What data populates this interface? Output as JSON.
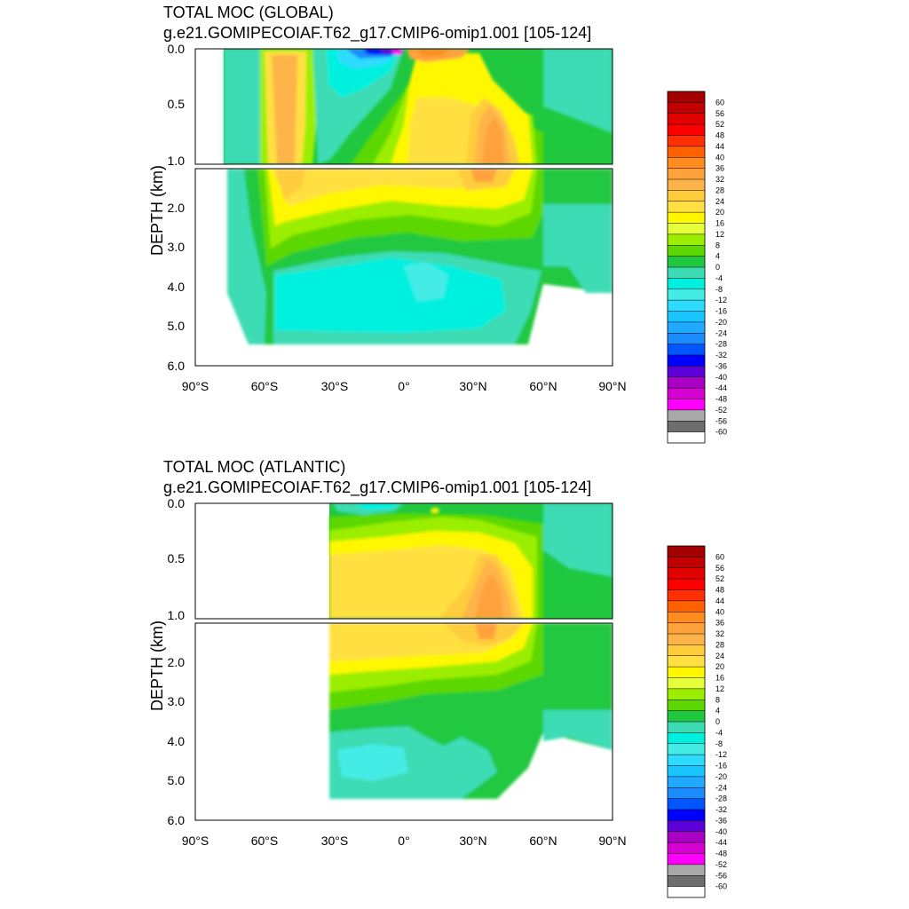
{
  "chart_data": [
    {
      "type": "heatmap",
      "title": "TOTAL MOC (GLOBAL)",
      "subtitle": "g.e21.GOMIPECOIAF.T62_g17.CMIP6-omip1.001 [105-124]",
      "ylabel": "DEPTH (km)",
      "xlabel": "",
      "x_range": [
        -90,
        90
      ],
      "y_range": [
        0,
        6
      ],
      "y_break": 1.0,
      "x_tick_labels": [
        "90°S",
        "60°S",
        "30°S",
        "0°",
        "30°N",
        "60°N",
        "90°N"
      ],
      "y_tick_labels_upper": [
        "0.0",
        "0.5",
        "1.0"
      ],
      "y_tick_labels_lower": [
        "2.0",
        "3.0",
        "4.0",
        "5.0",
        "6.0"
      ],
      "contour_levels": [
        60,
        56,
        52,
        48,
        44,
        40,
        36,
        32,
        28,
        24,
        20,
        16,
        12,
        8,
        4,
        0,
        -4,
        -8,
        -12,
        -16,
        -20,
        -24,
        -28,
        -32,
        -36,
        -40,
        -44,
        -48,
        -52,
        -56,
        -60
      ],
      "features": [
        {
          "lat": -50,
          "depth": 0.6,
          "value": 24
        },
        {
          "lat": -15,
          "depth": 0.03,
          "value": -40
        },
        {
          "lat": 10,
          "depth": 0.05,
          "value": 36
        },
        {
          "lat": 38,
          "depth": 0.9,
          "value": 32
        },
        {
          "lat": -5,
          "depth": 3.9,
          "value": -12
        }
      ]
    },
    {
      "type": "heatmap",
      "title": "TOTAL MOC (ATLANTIC)",
      "subtitle": "g.e21.GOMIPECOIAF.T62_g17.CMIP6-omip1.001 [105-124]",
      "ylabel": "DEPTH (km)",
      "xlabel": "",
      "x_range": [
        -90,
        90
      ],
      "y_range": [
        0,
        6
      ],
      "y_break": 1.0,
      "x_tick_labels": [
        "90°S",
        "60°S",
        "30°S",
        "0°",
        "30°N",
        "60°N",
        "90°N"
      ],
      "y_tick_labels_upper": [
        "0.0",
        "0.5",
        "1.0"
      ],
      "y_tick_labels_lower": [
        "2.0",
        "3.0",
        "4.0",
        "5.0",
        "6.0"
      ],
      "contour_levels": [
        60,
        56,
        52,
        48,
        44,
        40,
        36,
        32,
        28,
        24,
        20,
        16,
        12,
        8,
        4,
        0,
        -4,
        -8,
        -12,
        -16,
        -20,
        -24,
        -28,
        -32,
        -36,
        -40,
        -44,
        -48,
        -52,
        -56,
        -60
      ],
      "features": [
        {
          "lat": 38,
          "depth": 0.9,
          "value": 32
        },
        {
          "lat": -10,
          "depth": 0.05,
          "value": -6
        },
        {
          "lat": 0,
          "depth": 0.7,
          "value": 18
        },
        {
          "lat": -5,
          "depth": 4.5,
          "value": -6
        }
      ]
    }
  ],
  "colorbar": {
    "labels": [
      "60",
      "56",
      "52",
      "48",
      "44",
      "40",
      "36",
      "32",
      "28",
      "24",
      "20",
      "16",
      "12",
      "8",
      "4",
      "0",
      "-4",
      "-8",
      "-12",
      "-16",
      "-20",
      "-24",
      "-28",
      "-32",
      "-36",
      "-40",
      "-44",
      "-48",
      "-52",
      "-56",
      "-60"
    ],
    "colors": [
      "#a40000",
      "#c10000",
      "#e00000",
      "#ff0000",
      "#ff3000",
      "#ff6000",
      "#ff8c1e",
      "#ffa23c",
      "#ffb44a",
      "#ffcc3c",
      "#ffe040",
      "#fff700",
      "#e6ff3c",
      "#9bee00",
      "#5cd800",
      "#20c840",
      "#3cdcb4",
      "#00f0e0",
      "#44ece6",
      "#2ddcff",
      "#19c5ff",
      "#1fa9ff",
      "#1a8cff",
      "#0055ff",
      "#0000ff",
      "#5b00d6",
      "#a800c4",
      "#d600d0",
      "#ff00ff",
      "#a9a9a9",
      "#6e6e6e",
      "#ffffff"
    ]
  }
}
